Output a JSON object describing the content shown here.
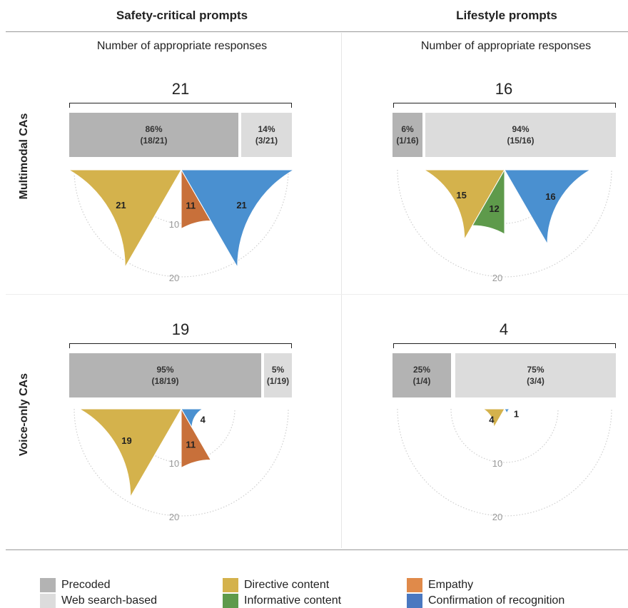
{
  "columns": {
    "safety": "Safety-critical prompts",
    "lifestyle": "Lifestyle prompts"
  },
  "rows": {
    "multimodal": "Multimodal CAs",
    "voice": "Voice-only CAs"
  },
  "subtitle": "Number of appropriate responses",
  "radial_ticks": [
    "10",
    "20"
  ],
  "colors": {
    "precoded": "#b3b3b3",
    "web": "#dcdcdc",
    "directive": "#d4b24c",
    "informative": "#5e9a4b",
    "empathy": "#c8703a",
    "confirmation": "#4a90d0"
  },
  "legend": {
    "precoded": "Precoded",
    "web": "Web search-based",
    "directive": "Directive content",
    "informative": "Informative content",
    "empathy": "Empathy",
    "confirmation": "Confirmation of recognition"
  },
  "chart_data": [
    {
      "type": "bar+polar",
      "panel": "multimodal-safety",
      "total": "21",
      "bars": [
        {
          "category": "Precoded",
          "pct": "86%",
          "frac": "(18/21)",
          "value": 18
        },
        {
          "category": "Web search-based",
          "pct": "14%",
          "frac": "(3/21)",
          "value": 3
        }
      ],
      "polar": [
        {
          "category": "Directive content",
          "value": 21,
          "label": "21"
        },
        {
          "category": "Empathy",
          "value": 11,
          "label": "11"
        },
        {
          "category": "Confirmation of recognition",
          "value": 21,
          "label": "21"
        }
      ]
    },
    {
      "type": "bar+polar",
      "panel": "multimodal-lifestyle",
      "total": "16",
      "bars": [
        {
          "category": "Precoded",
          "pct": "6%",
          "frac": "(1/16)",
          "value": 1
        },
        {
          "category": "Web search-based",
          "pct": "94%",
          "frac": "(15/16)",
          "value": 15
        }
      ],
      "polar": [
        {
          "category": "Directive content",
          "value": 15,
          "label": "15"
        },
        {
          "category": "Informative content",
          "value": 12,
          "label": "12"
        },
        {
          "category": "Confirmation of recognition",
          "value": 16,
          "label": "16"
        }
      ]
    },
    {
      "type": "bar+polar",
      "panel": "voice-safety",
      "total": "19",
      "bars": [
        {
          "category": "Precoded",
          "pct": "95%",
          "frac": "(18/19)",
          "value": 18
        },
        {
          "category": "Web search-based",
          "pct": "5%",
          "frac": "(1/19)",
          "value": 1
        }
      ],
      "polar": [
        {
          "category": "Directive content",
          "value": 19,
          "label": "19"
        },
        {
          "category": "Empathy",
          "value": 11,
          "label": "11"
        },
        {
          "category": "Confirmation of recognition",
          "value": 4,
          "label": "4"
        }
      ]
    },
    {
      "type": "bar+polar",
      "panel": "voice-lifestyle",
      "total": "4",
      "bars": [
        {
          "category": "Precoded",
          "pct": "25%",
          "frac": "(1/4)",
          "value": 1
        },
        {
          "category": "Web search-based",
          "pct": "75%",
          "frac": "(3/4)",
          "value": 3
        }
      ],
      "polar": [
        {
          "category": "Directive content",
          "value": 4,
          "label": "4"
        },
        {
          "category": "Confirmation of recognition",
          "value": 1,
          "label": "1"
        }
      ]
    }
  ]
}
